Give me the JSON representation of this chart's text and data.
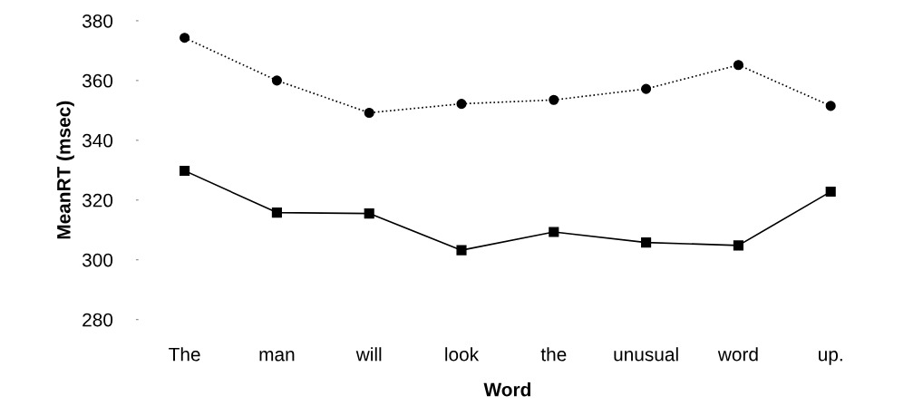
{
  "chart_data": {
    "type": "line",
    "xlabel": "Word",
    "ylabel": "MeanRT (msec)",
    "categories": [
      "The",
      "man",
      "will",
      "look",
      "the",
      "unusual",
      "word",
      "up."
    ],
    "series": [
      {
        "color": "#000000",
        "marker": "circle",
        "line_style": "dotted",
        "values": [
          374.3,
          360,
          349.2,
          352.2,
          353.5,
          357.2,
          365.2,
          351.5
        ]
      },
      {
        "color": "#000000",
        "marker": "square",
        "line_style": "solid",
        "values": [
          329.8,
          315.8,
          315.5,
          303.2,
          309.3,
          305.8,
          304.8,
          322.8
        ]
      }
    ],
    "ylim": [
      280,
      380
    ],
    "yticks": [
      280,
      300,
      320,
      340,
      360,
      380
    ],
    "grid": false,
    "legend": false
  }
}
